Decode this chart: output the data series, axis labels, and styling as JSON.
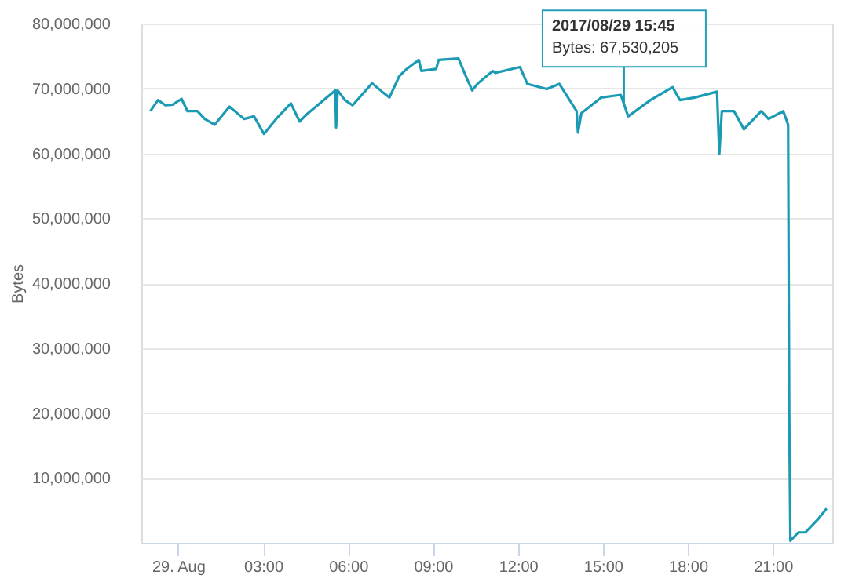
{
  "chart_data": {
    "type": "line",
    "ylabel": "Bytes",
    "grid": "y",
    "marker": "none",
    "line_style": "solid",
    "xlim": [
      -1.3,
      23.1
    ],
    "ylim": [
      0,
      80000000
    ],
    "xticks": [
      {
        "value": 0,
        "label": "29. Aug"
      },
      {
        "value": 3,
        "label": "03:00"
      },
      {
        "value": 6,
        "label": "06:00"
      },
      {
        "value": 9,
        "label": "09:00"
      },
      {
        "value": 12,
        "label": "12:00"
      },
      {
        "value": 15,
        "label": "15:00"
      },
      {
        "value": 18,
        "label": "18:00"
      },
      {
        "value": 21,
        "label": "21:00"
      }
    ],
    "yticks": [
      {
        "value": 10000000,
        "label": "10,000,000"
      },
      {
        "value": 20000000,
        "label": "20,000,000"
      },
      {
        "value": 30000000,
        "label": "30,000,000"
      },
      {
        "value": 40000000,
        "label": "40,000,000"
      },
      {
        "value": 50000000,
        "label": "50,000,000"
      },
      {
        "value": 60000000,
        "label": "60,000,000"
      },
      {
        "value": 70000000,
        "label": "70,000,000"
      },
      {
        "value": 80000000,
        "label": "80,000,000"
      }
    ],
    "annotations": [
      {
        "text": "2017/08/29 15:45\nBytes: 67,530,205",
        "x": 15.75,
        "y": 67530205
      }
    ],
    "series": [
      {
        "color": "#1b9bb3",
        "x": [
          -0.98,
          -0.71,
          -0.45,
          -0.19,
          0.12,
          0.33,
          0.68,
          0.94,
          1.29,
          1.81,
          2.33,
          2.68,
          3.03,
          3.46,
          3.98,
          4.29,
          4.59,
          5.55,
          5.58,
          5.63,
          5.89,
          6.16,
          6.85,
          7.2,
          7.46,
          7.81,
          8.07,
          8.5,
          8.59,
          9.11,
          9.2,
          9.9,
          10.16,
          10.38,
          10.59,
          11.11,
          11.2,
          12.07,
          12.33,
          13.02,
          13.46,
          14.07,
          14.12,
          14.24,
          14.94,
          15.63,
          15.75,
          15.89,
          16.68,
          17.46,
          17.72,
          18.24,
          19.03,
          19.11,
          19.2,
          19.63,
          19.98,
          20.59,
          20.85,
          21.37,
          21.54,
          21.58,
          21.62,
          21.9,
          22.15,
          22.59,
          22.9
        ],
        "values": [
          66500000,
          68200000,
          67400000,
          67500000,
          68400000,
          66500000,
          66500000,
          65300000,
          64400000,
          67200000,
          65300000,
          65700000,
          63000000,
          65300000,
          67700000,
          64900000,
          66200000,
          69700000,
          64000000,
          69700000,
          68200000,
          67400000,
          70800000,
          69500000,
          68600000,
          71900000,
          73000000,
          74400000,
          72700000,
          73000000,
          74400000,
          74600000,
          71900000,
          69700000,
          70800000,
          72700000,
          72400000,
          73300000,
          70700000,
          69900000,
          70700000,
          66500000,
          63200000,
          66200000,
          68600000,
          69000000,
          67530205,
          65700000,
          68200000,
          70200000,
          68200000,
          68600000,
          69500000,
          59900000,
          66500000,
          66500000,
          63700000,
          66500000,
          65300000,
          66500000,
          64400000,
          20000000,
          300000,
          1600000,
          1600000,
          3600000,
          5300000
        ]
      }
    ]
  }
}
